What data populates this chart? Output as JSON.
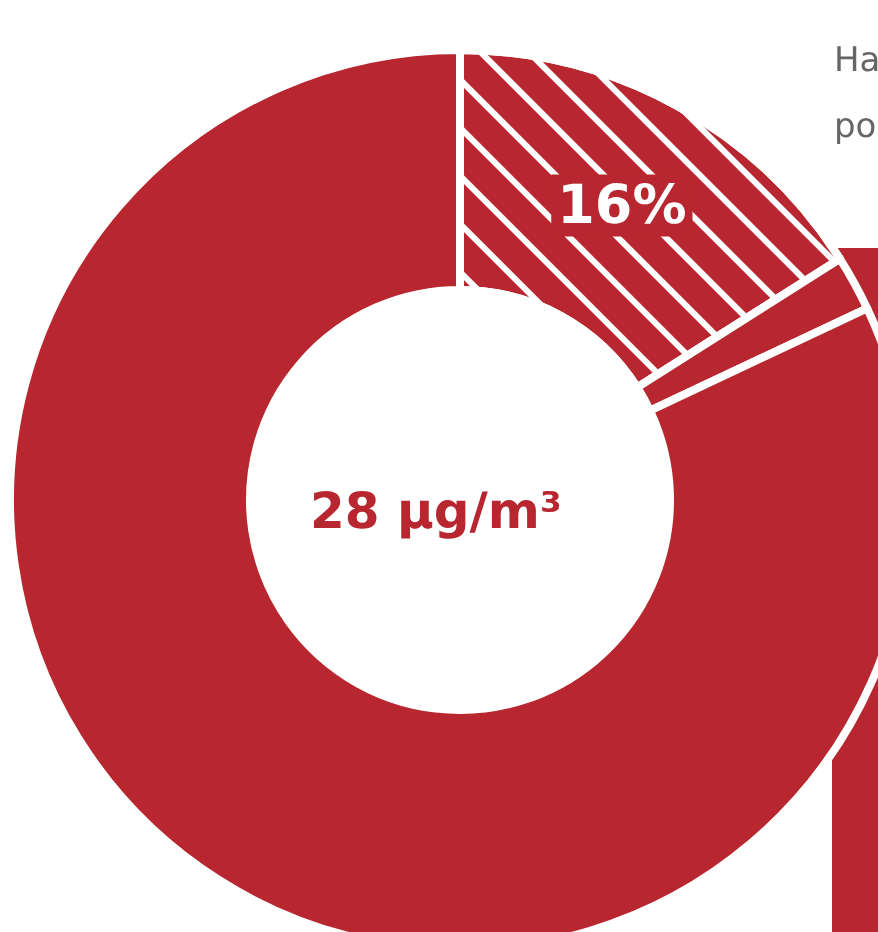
{
  "chart_data": {
    "type": "donut",
    "title": "28 µg/m³",
    "categories": [
      null,
      null,
      null
    ],
    "values": [
      16,
      2,
      82
    ],
    "colors": [
      "#b8272f",
      "#b8272f",
      "#b8272f"
    ],
    "value_labels": [
      "16%",
      null,
      null
    ],
    "annotations": [
      "Ha",
      "po"
    ]
  }
}
